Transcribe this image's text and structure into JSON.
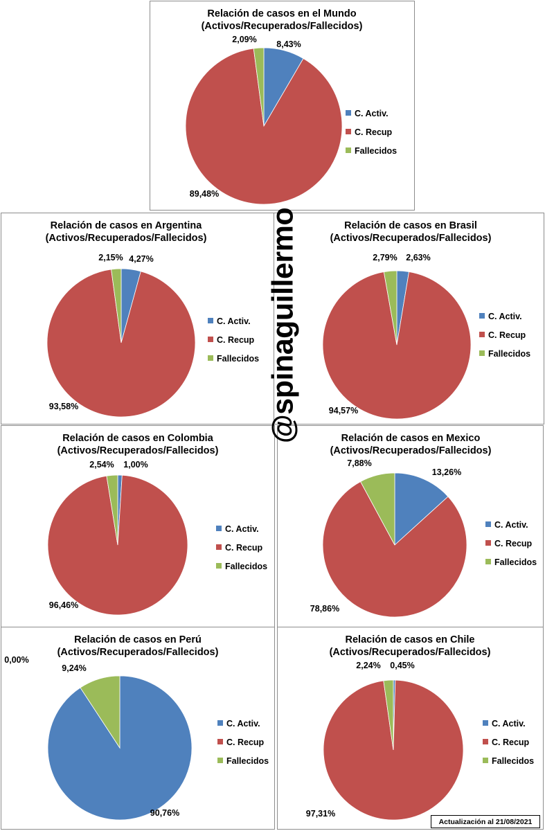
{
  "watermark": "@spinaguillermo",
  "update_note": "Actualización al 21/08/2021",
  "colors": {
    "activos": "#4f81bd",
    "recuperados": "#c0504d",
    "fallecidos": "#9bbb59"
  },
  "chart_data": [
    {
      "type": "pie",
      "title": "Relación de casos en el Mundo",
      "subtitle": "(Activos/Recuperados/Fallecidos)",
      "categories": [
        "C. Activ.",
        "C. Recup",
        "Fallecidos"
      ],
      "values": [
        8.43,
        89.48,
        2.09
      ],
      "labels": [
        "8,43%",
        "89,48%",
        "2,09%"
      ],
      "legend": "right"
    },
    {
      "type": "pie",
      "title": "Relación de casos en Argentina",
      "subtitle": "(Activos/Recuperados/Fallecidos)",
      "categories": [
        "C. Activ.",
        "C. Recup",
        "Fallecidos"
      ],
      "values": [
        4.27,
        93.58,
        2.15
      ],
      "labels": [
        "4,27%",
        "93,58%",
        "2,15%"
      ],
      "legend": "right"
    },
    {
      "type": "pie",
      "title": "Relación de casos en Brasil",
      "subtitle": "(Activos/Recuperados/Fallecidos)",
      "categories": [
        "C. Activ.",
        "C. Recup",
        "Fallecidos"
      ],
      "values": [
        2.63,
        94.57,
        2.79
      ],
      "labels": [
        "2,63%",
        "94,57%",
        "2,79%"
      ],
      "legend": "right"
    },
    {
      "type": "pie",
      "title": "Relación de casos en Colombia",
      "subtitle": "(Activos/Recuperados/Fallecidos)",
      "categories": [
        "C. Activ.",
        "C. Recup",
        "Fallecidos"
      ],
      "values": [
        1.0,
        96.46,
        2.54
      ],
      "labels": [
        "1,00%",
        "96,46%",
        "2,54%"
      ],
      "legend": "right"
    },
    {
      "type": "pie",
      "title": "Relación de casos en Mexico",
      "subtitle": "(Activos/Recuperados/Fallecidos)",
      "categories": [
        "C. Activ.",
        "C. Recup",
        "Fallecidos"
      ],
      "values": [
        13.26,
        78.86,
        7.88
      ],
      "labels": [
        "13,26%",
        "78,86%",
        "7,88%"
      ],
      "legend": "right"
    },
    {
      "type": "pie",
      "title": "Relación de casos en Perú",
      "subtitle": "(Activos/Recuperados/Fallecidos)",
      "categories": [
        "C. Activ.",
        "C. Recup",
        "Fallecidos"
      ],
      "values": [
        90.76,
        0.0,
        9.24
      ],
      "labels": [
        "90,76%",
        "0,00%",
        "9,24%"
      ],
      "legend": "right"
    },
    {
      "type": "pie",
      "title": "Relación de casos en Chile",
      "subtitle": "(Activos/Recuperados/Fallecidos)",
      "categories": [
        "C. Activ.",
        "C. Recup",
        "Fallecidos"
      ],
      "values": [
        0.45,
        97.31,
        2.24
      ],
      "labels": [
        "0,45%",
        "97,31%",
        "2,24%"
      ],
      "legend": "right"
    }
  ]
}
